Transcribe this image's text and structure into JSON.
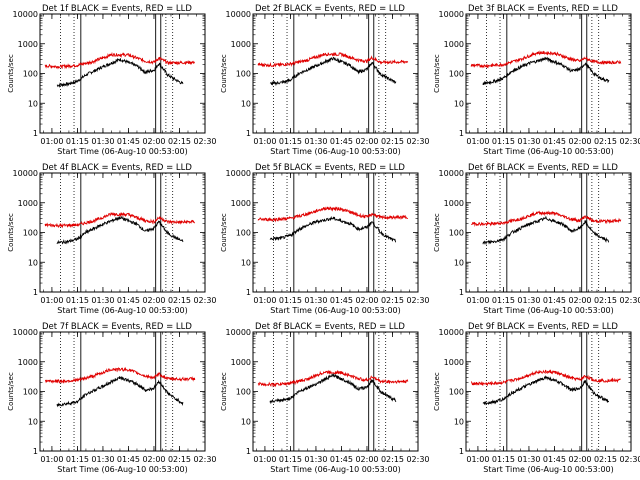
{
  "colors": {
    "events": "#000000",
    "lld": "#e00000",
    "background": "#ffffff"
  },
  "chart_data": [
    {
      "type": "line",
      "title": "Det 1f BLACK = Events, RED = LLD",
      "xlabel": "Start Time (06-Aug-10 00:53:00)",
      "ylabel": "Counts/sec",
      "yscale": "log",
      "ylim": [
        1,
        10000
      ],
      "xlim": [
        "00:53",
        "02:30"
      ],
      "x_ticks": [
        "01:00",
        "01:15",
        "01:30",
        "01:45",
        "02:00",
        "02:15",
        "02:30"
      ],
      "y_ticks": [
        "1",
        "10",
        "100",
        "1000",
        "10000"
      ],
      "grid": false,
      "legend": "in title",
      "series": [
        {
          "name": "Events",
          "color": "#000000",
          "start": "01:03",
          "end": "02:17",
          "x": [
            "01:03",
            "01:10",
            "01:15",
            "01:20",
            "01:30",
            "01:40",
            "01:50",
            "01:55",
            "02:00",
            "02:03",
            "02:08",
            "02:12",
            "02:17"
          ],
          "y": [
            40,
            45,
            55,
            90,
            170,
            300,
            180,
            110,
            130,
            220,
            90,
            65,
            45
          ]
        },
        {
          "name": "LLD",
          "color": "#e00000",
          "start": "00:56",
          "end": "02:24",
          "x": [
            "00:56",
            "01:05",
            "01:15",
            "01:25",
            "01:35",
            "01:45",
            "01:55",
            "02:00",
            "02:03",
            "02:08",
            "02:15",
            "02:24"
          ],
          "y": [
            180,
            170,
            190,
            260,
            430,
            420,
            260,
            240,
            330,
            230,
            230,
            240
          ]
        }
      ]
    },
    {
      "type": "line",
      "title": "Det 2f BLACK = Events, RED = LLD",
      "xlabel": "Start Time (06-Aug-10 00:53:00)",
      "ylabel": "Counts/sec",
      "yscale": "log",
      "ylim": [
        1,
        10000
      ],
      "xlim": [
        "00:53",
        "02:30"
      ],
      "x_ticks": [
        "01:00",
        "01:15",
        "01:30",
        "01:45",
        "02:00",
        "02:15",
        "02:30"
      ],
      "y_ticks": [
        "1",
        "10",
        "100",
        "1000",
        "10000"
      ],
      "grid": false,
      "legend": "in title",
      "series": [
        {
          "name": "Events",
          "color": "#000000",
          "start": "01:03",
          "end": "02:17",
          "x": [
            "01:03",
            "01:10",
            "01:15",
            "01:20",
            "01:30",
            "01:40",
            "01:50",
            "01:55",
            "02:00",
            "02:03",
            "02:08",
            "02:12",
            "02:17"
          ],
          "y": [
            45,
            50,
            60,
            100,
            180,
            320,
            190,
            110,
            140,
            230,
            95,
            70,
            50
          ]
        },
        {
          "name": "LLD",
          "color": "#e00000",
          "start": "00:56",
          "end": "02:24",
          "x": [
            "00:56",
            "01:05",
            "01:15",
            "01:25",
            "01:35",
            "01:45",
            "01:55",
            "02:00",
            "02:03",
            "02:08",
            "02:15",
            "02:24"
          ],
          "y": [
            200,
            190,
            210,
            280,
            450,
            440,
            280,
            260,
            340,
            240,
            240,
            250
          ]
        }
      ]
    },
    {
      "type": "line",
      "title": "Det 3f BLACK = Events, RED = LLD",
      "xlabel": "Start Time (06-Aug-10 00:53:00)",
      "ylabel": "Counts/sec",
      "yscale": "log",
      "ylim": [
        1,
        10000
      ],
      "xlim": [
        "00:53",
        "02:30"
      ],
      "x_ticks": [
        "01:00",
        "01:15",
        "01:30",
        "01:45",
        "02:00",
        "02:15",
        "02:30"
      ],
      "y_ticks": [
        "1",
        "10",
        "100",
        "1000",
        "10000"
      ],
      "grid": false,
      "legend": "in title",
      "series": [
        {
          "name": "Events",
          "color": "#000000",
          "start": "01:03",
          "end": "02:17",
          "x": [
            "01:03",
            "01:10",
            "01:15",
            "01:20",
            "01:30",
            "01:40",
            "01:50",
            "01:55",
            "02:00",
            "02:03",
            "02:08",
            "02:12",
            "02:17"
          ],
          "y": [
            45,
            55,
            70,
            120,
            220,
            320,
            190,
            120,
            140,
            220,
            100,
            70,
            55
          ]
        },
        {
          "name": "LLD",
          "color": "#e00000",
          "start": "00:56",
          "end": "02:24",
          "x": [
            "00:56",
            "01:05",
            "01:15",
            "01:25",
            "01:35",
            "01:45",
            "01:55",
            "02:00",
            "02:03",
            "02:08",
            "02:15",
            "02:24"
          ],
          "y": [
            190,
            180,
            200,
            300,
            500,
            480,
            300,
            260,
            330,
            250,
            230,
            240
          ]
        }
      ]
    },
    {
      "type": "line",
      "title": "Det 4f BLACK = Events, RED = LLD",
      "xlabel": "Start Time (06-Aug-10 00:53:00)",
      "ylabel": "Counts/sec",
      "yscale": "log",
      "ylim": [
        1,
        10000
      ],
      "xlim": [
        "00:53",
        "02:30"
      ],
      "x_ticks": [
        "01:00",
        "01:15",
        "01:30",
        "01:45",
        "02:00",
        "02:15",
        "02:30"
      ],
      "y_ticks": [
        "1",
        "10",
        "100",
        "1000",
        "10000"
      ],
      "grid": false,
      "legend": "in title",
      "series": [
        {
          "name": "Events",
          "color": "#000000",
          "start": "01:03",
          "end": "02:17",
          "x": [
            "01:03",
            "01:10",
            "01:15",
            "01:20",
            "01:30",
            "01:40",
            "01:50",
            "01:55",
            "02:00",
            "02:03",
            "02:08",
            "02:12",
            "02:17"
          ],
          "y": [
            45,
            50,
            60,
            100,
            190,
            320,
            190,
            110,
            140,
            230,
            95,
            70,
            50
          ]
        },
        {
          "name": "LLD",
          "color": "#e00000",
          "start": "00:56",
          "end": "02:24",
          "x": [
            "00:56",
            "01:05",
            "01:15",
            "01:25",
            "01:35",
            "01:45",
            "01:55",
            "02:00",
            "02:03",
            "02:08",
            "02:15",
            "02:24"
          ],
          "y": [
            180,
            170,
            180,
            250,
            420,
            400,
            250,
            230,
            320,
            230,
            220,
            230
          ]
        }
      ]
    },
    {
      "type": "line",
      "title": "Det 5f BLACK = Events, RED = LLD",
      "xlabel": "Start Time (06-Aug-10 00:53:00)",
      "ylabel": "Counts/sec",
      "yscale": "log",
      "ylim": [
        1,
        10000
      ],
      "xlim": [
        "00:53",
        "02:30"
      ],
      "x_ticks": [
        "01:00",
        "01:15",
        "01:30",
        "01:45",
        "02:00",
        "02:15",
        "02:30"
      ],
      "y_ticks": [
        "1",
        "10",
        "100",
        "1000",
        "10000"
      ],
      "grid": false,
      "legend": "in title",
      "series": [
        {
          "name": "Events",
          "color": "#000000",
          "start": "01:03",
          "end": "02:17",
          "x": [
            "01:03",
            "01:10",
            "01:15",
            "01:20",
            "01:30",
            "01:40",
            "01:50",
            "01:55",
            "02:00",
            "02:03",
            "02:08",
            "02:12",
            "02:17"
          ],
          "y": [
            60,
            65,
            80,
            130,
            230,
            300,
            200,
            130,
            150,
            230,
            100,
            70,
            50
          ]
        },
        {
          "name": "LLD",
          "color": "#e00000",
          "start": "00:56",
          "end": "02:24",
          "x": [
            "00:56",
            "01:05",
            "01:15",
            "01:25",
            "01:35",
            "01:45",
            "01:55",
            "02:00",
            "02:03",
            "02:08",
            "02:15",
            "02:24"
          ],
          "y": [
            280,
            270,
            300,
            420,
            650,
            620,
            380,
            330,
            420,
            320,
            320,
            330
          ]
        }
      ]
    },
    {
      "type": "line",
      "title": "Det 6f BLACK = Events, RED = LLD",
      "xlabel": "Start Time (06-Aug-10 00:53:00)",
      "ylabel": "Counts/sec",
      "yscale": "log",
      "ylim": [
        1,
        10000
      ],
      "xlim": [
        "00:53",
        "02:30"
      ],
      "x_ticks": [
        "01:00",
        "01:15",
        "01:30",
        "01:45",
        "02:00",
        "02:15",
        "02:30"
      ],
      "y_ticks": [
        "1",
        "10",
        "100",
        "1000",
        "10000"
      ],
      "grid": false,
      "legend": "in title",
      "series": [
        {
          "name": "Events",
          "color": "#000000",
          "start": "01:03",
          "end": "02:17",
          "x": [
            "01:03",
            "01:10",
            "01:15",
            "01:20",
            "01:30",
            "01:40",
            "01:50",
            "01:55",
            "02:00",
            "02:03",
            "02:08",
            "02:12",
            "02:17"
          ],
          "y": [
            45,
            50,
            60,
            100,
            190,
            300,
            190,
            110,
            140,
            230,
            95,
            70,
            50
          ]
        },
        {
          "name": "LLD",
          "color": "#e00000",
          "start": "00:56",
          "end": "02:24",
          "x": [
            "00:56",
            "01:05",
            "01:15",
            "01:25",
            "01:35",
            "01:45",
            "01:55",
            "02:00",
            "02:03",
            "02:08",
            "02:15",
            "02:24"
          ],
          "y": [
            200,
            190,
            210,
            290,
            460,
            440,
            280,
            250,
            350,
            240,
            240,
            250
          ]
        }
      ]
    },
    {
      "type": "line",
      "title": "Det 7f BLACK = Events, RED = LLD",
      "xlabel": "Start Time (06-Aug-10 00:53:00)",
      "ylabel": "Counts/sec",
      "yscale": "log",
      "ylim": [
        1,
        10000
      ],
      "xlim": [
        "00:53",
        "02:30"
      ],
      "x_ticks": [
        "01:00",
        "01:15",
        "01:30",
        "01:45",
        "02:00",
        "02:15",
        "02:30"
      ],
      "y_ticks": [
        "1",
        "10",
        "100",
        "1000",
        "10000"
      ],
      "grid": false,
      "legend": "in title",
      "series": [
        {
          "name": "Events",
          "color": "#000000",
          "start": "01:03",
          "end": "02:17",
          "x": [
            "01:03",
            "01:10",
            "01:15",
            "01:20",
            "01:30",
            "01:40",
            "01:50",
            "01:55",
            "02:00",
            "02:03",
            "02:08",
            "02:12",
            "02:17"
          ],
          "y": [
            35,
            40,
            45,
            80,
            150,
            300,
            180,
            110,
            130,
            220,
            90,
            60,
            40
          ]
        },
        {
          "name": "LLD",
          "color": "#e00000",
          "start": "00:56",
          "end": "02:24",
          "x": [
            "00:56",
            "01:05",
            "01:15",
            "01:25",
            "01:35",
            "01:45",
            "01:55",
            "02:00",
            "02:03",
            "02:08",
            "02:15",
            "02:24"
          ],
          "y": [
            230,
            220,
            240,
            340,
            560,
            540,
            330,
            290,
            380,
            270,
            260,
            270
          ]
        }
      ]
    },
    {
      "type": "line",
      "title": "Det 8f BLACK = Events, RED = LLD",
      "xlabel": "Start Time (06-Aug-10 00:53:00)",
      "ylabel": "Counts/sec",
      "yscale": "log",
      "ylim": [
        1,
        10000
      ],
      "xlim": [
        "00:53",
        "02:30"
      ],
      "x_ticks": [
        "01:00",
        "01:15",
        "01:30",
        "01:45",
        "02:00",
        "02:15",
        "02:30"
      ],
      "y_ticks": [
        "1",
        "10",
        "100",
        "1000",
        "10000"
      ],
      "grid": false,
      "legend": "in title",
      "series": [
        {
          "name": "Events",
          "color": "#000000",
          "start": "01:03",
          "end": "02:17",
          "x": [
            "01:03",
            "01:10",
            "01:15",
            "01:20",
            "01:30",
            "01:40",
            "01:50",
            "01:55",
            "02:00",
            "02:03",
            "02:08",
            "02:12",
            "02:17"
          ],
          "y": [
            45,
            50,
            60,
            100,
            180,
            350,
            200,
            120,
            140,
            240,
            100,
            70,
            50
          ]
        },
        {
          "name": "LLD",
          "color": "#e00000",
          "start": "00:56",
          "end": "02:24",
          "x": [
            "00:56",
            "01:05",
            "01:15",
            "01:25",
            "01:35",
            "01:45",
            "01:55",
            "02:00",
            "02:03",
            "02:08",
            "02:15",
            "02:24"
          ],
          "y": [
            180,
            170,
            190,
            260,
            450,
            430,
            270,
            240,
            310,
            220,
            210,
            220
          ]
        }
      ]
    },
    {
      "type": "line",
      "title": "Det 9f BLACK = Events, RED = LLD",
      "xlabel": "Start Time (06-Aug-10 00:53:00)",
      "ylabel": "Counts/sec",
      "yscale": "log",
      "ylim": [
        1,
        10000
      ],
      "xlim": [
        "00:53",
        "02:30"
      ],
      "x_ticks": [
        "01:00",
        "01:15",
        "01:30",
        "01:45",
        "02:00",
        "02:15",
        "02:30"
      ],
      "y_ticks": [
        "1",
        "10",
        "100",
        "1000",
        "10000"
      ],
      "grid": false,
      "legend": "in title",
      "series": [
        {
          "name": "Events",
          "color": "#000000",
          "start": "01:03",
          "end": "02:17",
          "x": [
            "01:03",
            "01:10",
            "01:15",
            "01:20",
            "01:30",
            "01:40",
            "01:50",
            "01:55",
            "02:00",
            "02:03",
            "02:08",
            "02:12",
            "02:17"
          ],
          "y": [
            40,
            45,
            55,
            90,
            170,
            300,
            180,
            110,
            130,
            220,
            90,
            65,
            45
          ]
        },
        {
          "name": "LLD",
          "color": "#e00000",
          "start": "00:56",
          "end": "02:24",
          "x": [
            "00:56",
            "01:05",
            "01:15",
            "01:25",
            "01:35",
            "01:45",
            "01:55",
            "02:00",
            "02:03",
            "02:08",
            "02:15",
            "02:24"
          ],
          "y": [
            190,
            180,
            200,
            280,
            460,
            450,
            280,
            250,
            330,
            240,
            230,
            240
          ]
        }
      ]
    }
  ]
}
